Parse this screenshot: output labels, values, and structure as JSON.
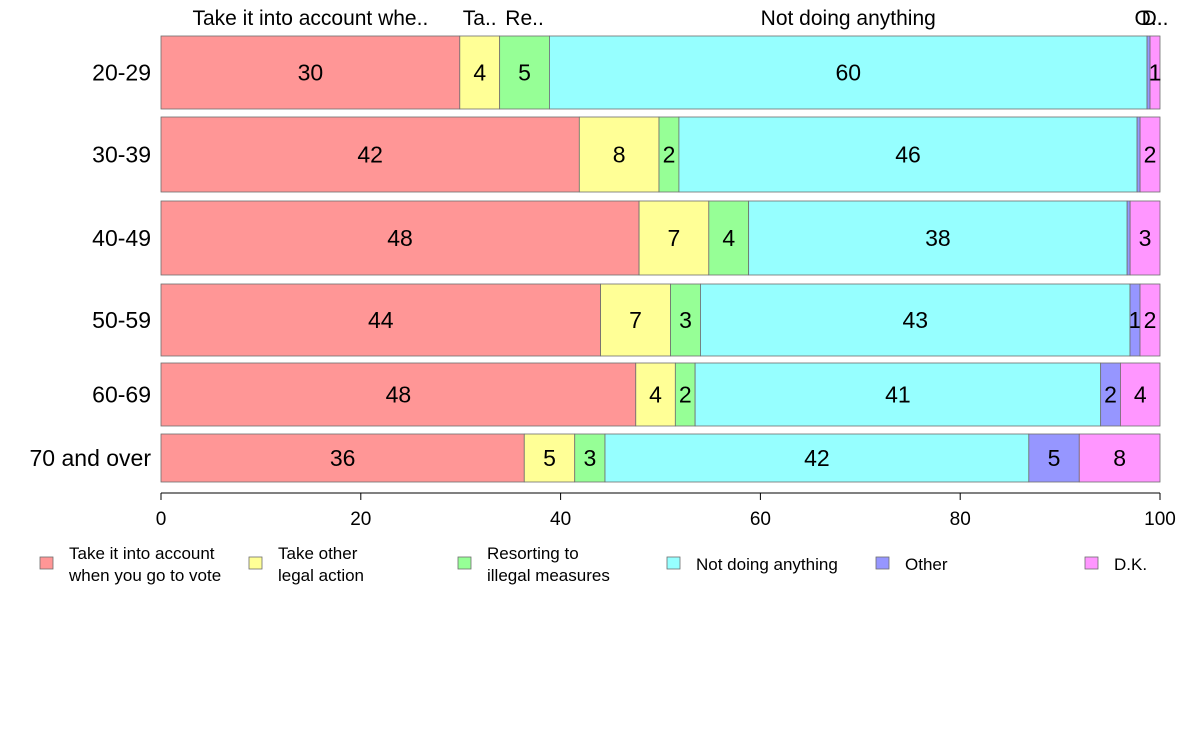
{
  "chart_data": {
    "type": "bar",
    "orientation": "horizontal",
    "stacked": true,
    "categories": [
      "20-29",
      "30-39",
      "40-49",
      "50-59",
      "60-69",
      "70 and over"
    ],
    "series": [
      {
        "name": "Take it into account when you go to vote",
        "legend_lines": [
          "Take it into account",
          "when you go to vote"
        ],
        "top_label": "Take it into account whe..",
        "color": "#FF9696",
        "values": [
          30,
          42,
          48,
          44,
          48,
          36
        ]
      },
      {
        "name": "Take other legal action",
        "legend_lines": [
          "Take other",
          "legal action"
        ],
        "top_label": "Ta..",
        "color": "#FFFF96",
        "values": [
          4,
          8,
          7,
          7,
          4,
          5
        ]
      },
      {
        "name": "Resorting to illegal measures",
        "legend_lines": [
          "Resorting to",
          "illegal measures"
        ],
        "top_label": "Re..",
        "color": "#96FF96",
        "values": [
          5,
          2,
          4,
          3,
          2,
          3
        ]
      },
      {
        "name": "Not doing anything",
        "legend_lines": [
          "Not doing anything"
        ],
        "top_label": "Not doing anything",
        "color": "#96FFFF",
        "values": [
          60,
          46,
          38,
          43,
          41,
          42
        ]
      },
      {
        "name": "Other",
        "legend_lines": [
          "Other"
        ],
        "top_label": "O..",
        "color": "#9696FF",
        "values": [
          0.3,
          0.3,
          0.3,
          1,
          2,
          5
        ],
        "labels": [
          "",
          "",
          "",
          "1",
          "2",
          "5"
        ]
      },
      {
        "name": "D.K.",
        "legend_lines": [
          "D.K."
        ],
        "top_label": "D..",
        "color": "#FF96FF",
        "values": [
          1,
          2,
          3,
          2,
          4,
          8
        ],
        "labels": [
          "1",
          "2",
          "3",
          "2",
          "4",
          "8"
        ]
      }
    ],
    "x_ticks": [
      0,
      20,
      40,
      60,
      80,
      100
    ],
    "xlim": [
      0,
      100
    ],
    "grid": false,
    "legend_position": "bottom"
  }
}
